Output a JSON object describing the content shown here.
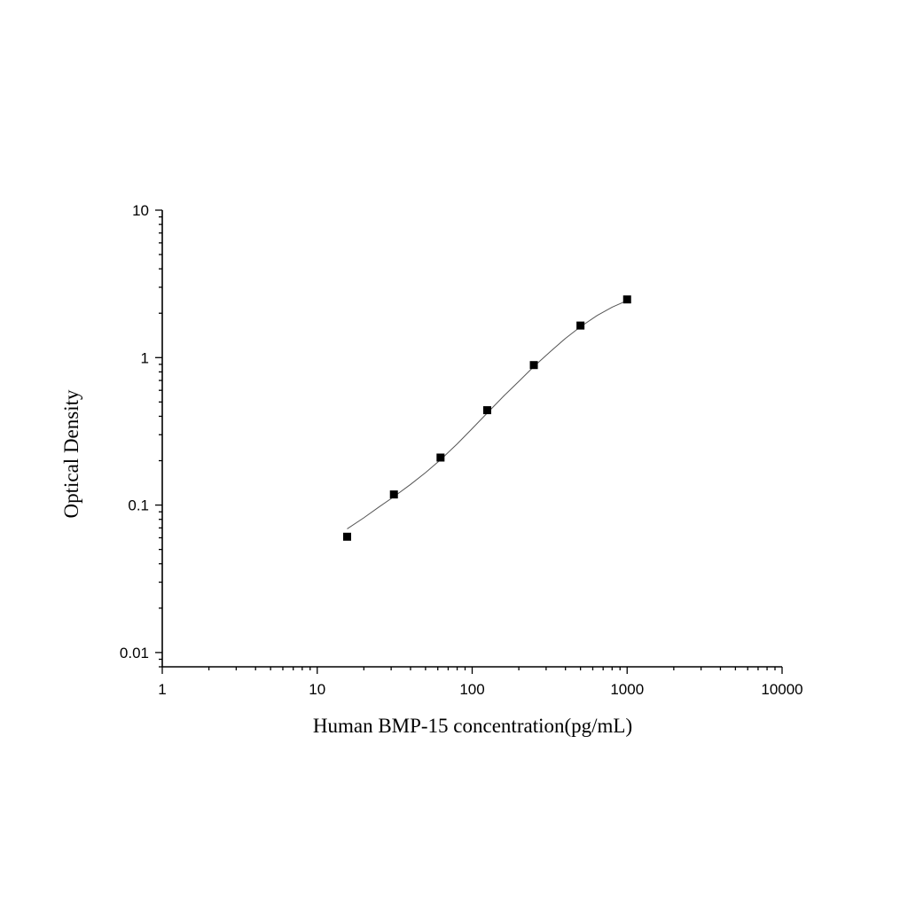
{
  "chart_data": {
    "type": "scatter",
    "title": "",
    "xlabel": "Human BMP-15 concentration(pg/mL)",
    "ylabel": "Optical Density",
    "x_scale": "log",
    "y_scale": "log",
    "xlim": [
      1,
      10000
    ],
    "ylim": [
      0.008,
      10
    ],
    "x_ticks": [
      1,
      10,
      100,
      1000,
      10000
    ],
    "x_tick_labels": [
      "1",
      "10",
      "100",
      "1000",
      "10000"
    ],
    "y_ticks": [
      0.01,
      0.1,
      1,
      10
    ],
    "y_tick_labels": [
      "0.01",
      "0.1",
      "1",
      "10"
    ],
    "grid": false,
    "series": [
      {
        "marker": "square",
        "color": "#000000",
        "x": [
          15.6,
          31.25,
          62.5,
          125,
          250,
          500,
          1000
        ],
        "y": [
          0.061,
          0.118,
          0.21,
          0.44,
          0.89,
          1.65,
          2.48
        ]
      }
    ],
    "fit_curve": {
      "color": "#555555",
      "x": [
        15.6,
        20,
        25,
        31.25,
        40,
        50,
        62.5,
        80,
        100,
        125,
        160,
        200,
        250,
        320,
        400,
        500,
        640,
        800,
        1000
      ],
      "y": [
        0.069,
        0.082,
        0.097,
        0.114,
        0.138,
        0.166,
        0.203,
        0.26,
        0.33,
        0.42,
        0.55,
        0.69,
        0.87,
        1.1,
        1.35,
        1.62,
        1.93,
        2.2,
        2.44
      ]
    }
  }
}
